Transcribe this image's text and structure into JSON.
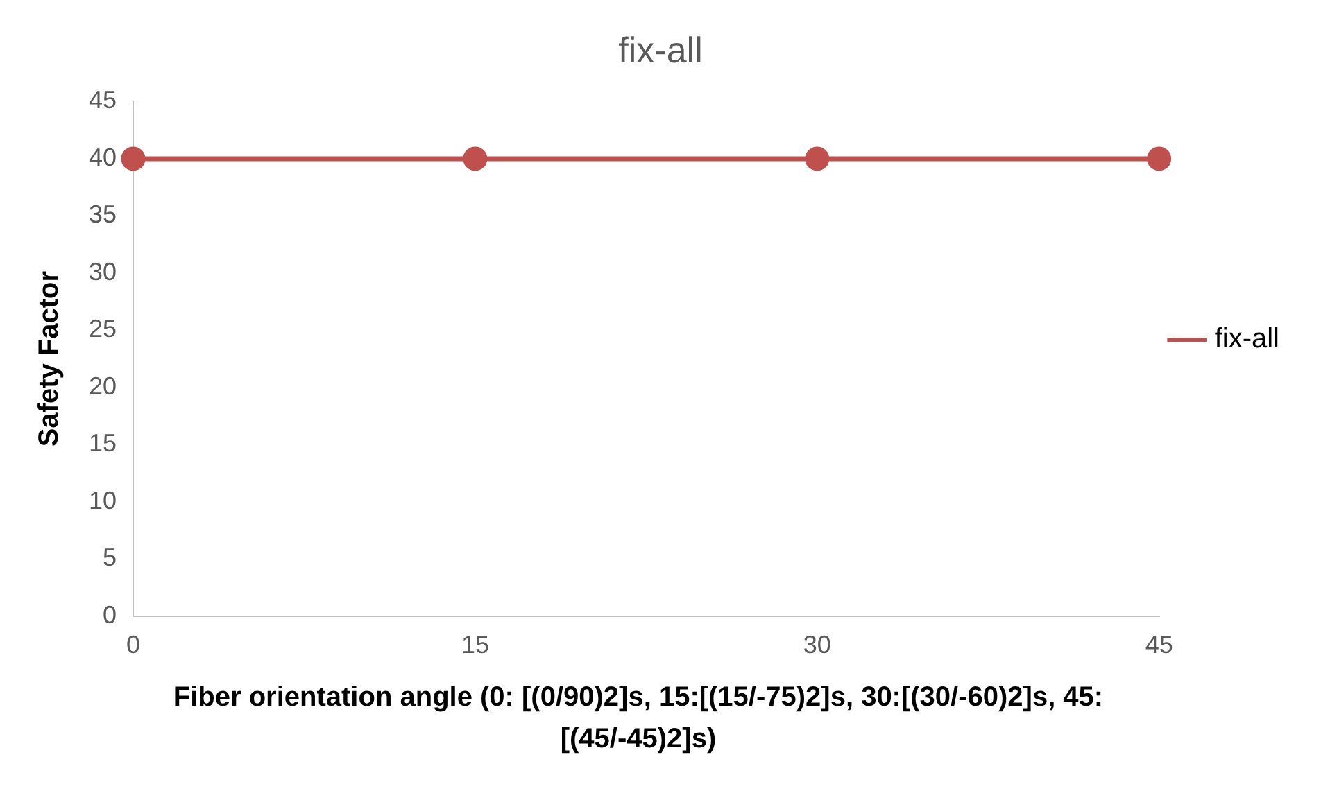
{
  "chart_data": {
    "type": "line",
    "title": "fix-all",
    "xlabel": "Fiber orientation angle (0: [(0/90)2]s, 15:[(15/-75)2]s, 30:[(30/-60)2]s, 45:[(45/-45)2]s)",
    "ylabel": "Safety Factor",
    "categories": [
      "0",
      "15",
      "30",
      "45"
    ],
    "series": [
      {
        "name": "fix-all",
        "color": "#c0504d",
        "values": [
          40,
          40,
          40,
          40
        ]
      }
    ],
    "ylim": [
      0,
      45
    ],
    "yticks": [
      0,
      5,
      10,
      15,
      20,
      25,
      30,
      35,
      40,
      45
    ],
    "grid": false,
    "legend": "right",
    "marker": "circle",
    "line_style": "solid"
  }
}
